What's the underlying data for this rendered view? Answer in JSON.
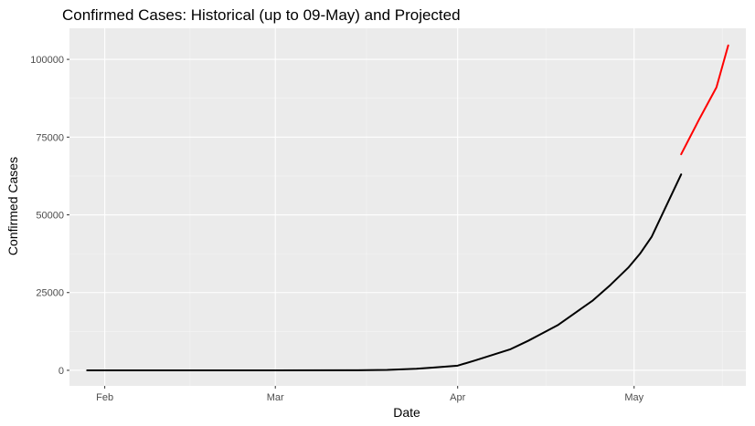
{
  "chart_data": {
    "type": "line",
    "title": "Confirmed Cases: Historical (up to 09-May) and Projected",
    "xlabel": "Date",
    "ylabel": "Confirmed Cases",
    "x_ticks": [
      "Feb",
      "Mar",
      "Apr",
      "May"
    ],
    "x_tick_dates": [
      "2020-02-01",
      "2020-03-01",
      "2020-04-01",
      "2020-05-01"
    ],
    "y_ticks": [
      0,
      25000,
      50000,
      75000,
      100000
    ],
    "y_tick_labels": [
      "0",
      "25000",
      "50000",
      "75000",
      "100000"
    ],
    "xlim": [
      "2020-01-26",
      "2020-05-20"
    ],
    "ylim": [
      -5000,
      110000
    ],
    "grid": true,
    "background": "#ebebeb",
    "series": [
      {
        "color": "#000000",
        "x": [
          "2020-01-29",
          "2020-02-15",
          "2020-03-01",
          "2020-03-15",
          "2020-03-20",
          "2020-03-25",
          "2020-03-28",
          "2020-04-01",
          "2020-04-04",
          "2020-04-07",
          "2020-04-10",
          "2020-04-13",
          "2020-04-15",
          "2020-04-18",
          "2020-04-21",
          "2020-04-24",
          "2020-04-27",
          "2020-04-30",
          "2020-05-02",
          "2020-05-04",
          "2020-05-06",
          "2020-05-09"
        ],
        "y": [
          0,
          0,
          0,
          20,
          120,
          500,
          900,
          1500,
          3200,
          5000,
          6800,
          9500,
          11500,
          14500,
          18500,
          22500,
          27500,
          33000,
          37500,
          43000,
          51000,
          63000
        ]
      },
      {
        "color": "#ff0000",
        "x": [
          "2020-05-09",
          "2020-05-12",
          "2020-05-15",
          "2020-05-17"
        ],
        "y": [
          69500,
          80500,
          91000,
          104500
        ]
      }
    ]
  }
}
